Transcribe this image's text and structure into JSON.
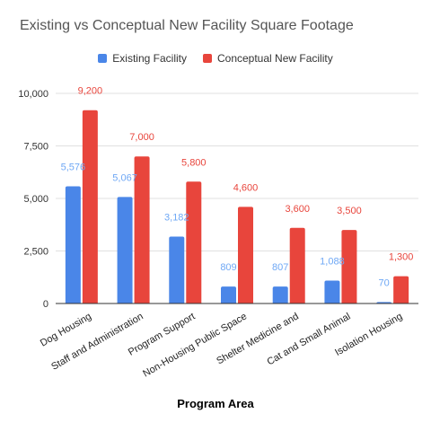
{
  "chart_data": {
    "type": "bar",
    "title": "Existing vs Conceptual New Facility Square Footage",
    "xlabel": "Program Area",
    "ylabel": "",
    "ylim": [
      0,
      10000
    ],
    "y_ticks": [
      "0",
      "2,500",
      "5,000",
      "7,500",
      "10,000"
    ],
    "y_tick_values": [
      0,
      2500,
      5000,
      7500,
      10000
    ],
    "grid": true,
    "legend_position": "top",
    "categories": [
      "Dog Housing",
      "Staff and Administration",
      "Program Support",
      "Non-Housing Public Space",
      "Shelter Medicine and",
      "Cat and Small Animal",
      "Isolation Housing"
    ],
    "series": [
      {
        "name": "Existing Facility",
        "color": "#4A86E8",
        "label_color": "#6FA8F5",
        "values": [
          5576,
          5067,
          3182,
          809,
          807,
          1088,
          70
        ],
        "labels": [
          "5,576",
          "5,067",
          "3,182",
          "809",
          "807",
          "1,088",
          "70"
        ]
      },
      {
        "name": "Conceptual New Facility",
        "color": "#E8453C",
        "label_color": "#E8453C",
        "values": [
          9200,
          7000,
          5800,
          4600,
          3600,
          3500,
          1300
        ],
        "labels": [
          "9,200",
          "7,000",
          "5,800",
          "4,600",
          "3,600",
          "3,500",
          "1,300"
        ]
      }
    ]
  }
}
